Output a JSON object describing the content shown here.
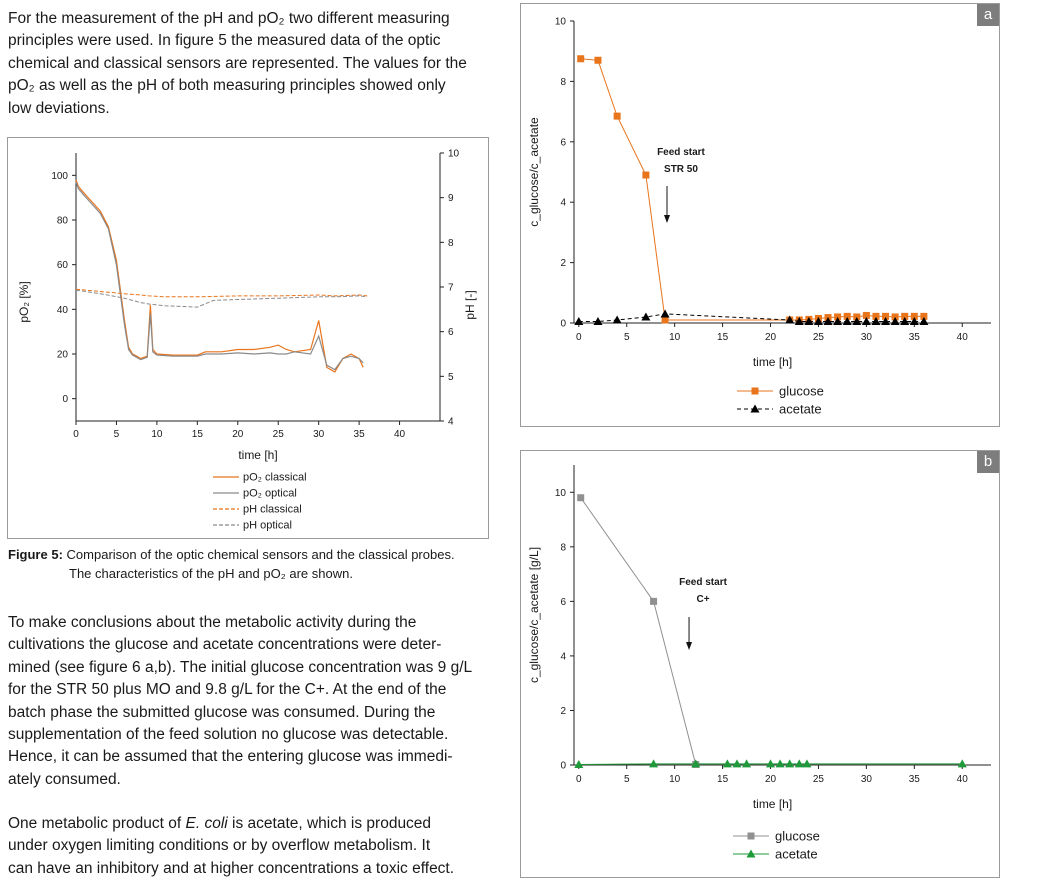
{
  "text": {
    "p1": [
      "For the measurement of the pH and pO₂ two different measuring",
      "principles were used. In figure 5 the measured data of the optic",
      "chemical and classical sensors are represented. The values for the",
      "pO₂ as well as the pH of both measuring principles showed only",
      "low deviations."
    ],
    "caption_label": "Figure 5:",
    "caption_line1": "Comparison of the optic chemical sensors and the classical probes.",
    "caption_line2": "The characteristics of the pH and pO₂ are shown.",
    "p2": [
      "To make conclusions about the metabolic activity during the",
      "cultivations the glucose and acetate concentrations were deter-",
      "mined (see figure 6 a,b). The initial glucose concentration was 9 g/L",
      "for the STR 50 plus MO and 9.8 g/L for the C+. At the end of the",
      "batch phase the submitted glucose was consumed. During the",
      "supplementation of the feed solution no glucose was detectable.",
      "Hence, it can be assumed that the entering glucose was immedi-",
      "ately consumed."
    ],
    "p3_line1_pre": "One metabolic product of ",
    "p3_line1_em": "E. coli",
    "p3_line1_post": " is acetate, which is produced",
    "p3": [
      "under oxygen limiting conditions or by overflow metabolism. It",
      "can have an inhibitory and at higher concentrations a toxic effect."
    ]
  },
  "chart_data": [
    {
      "id": "fig5",
      "type": "line",
      "xlabel": "time [h]",
      "ylabel_left": "pO₂ [%]",
      "ylabel_right": "pH [-]",
      "xlim": [
        0,
        45
      ],
      "xticks": [
        0,
        5,
        10,
        15,
        20,
        25,
        30,
        35,
        40
      ],
      "ylim_left": [
        -10,
        110
      ],
      "yticks_left": [
        0,
        20,
        40,
        60,
        80,
        100
      ],
      "ylim_right": [
        4,
        10
      ],
      "yticks_right": [
        4,
        5,
        6,
        7,
        8,
        9,
        10
      ],
      "legend_position": "bottom-center",
      "series": [
        {
          "name": "pO₂ classical",
          "axis": "left",
          "color": "#e8741c",
          "dash": false,
          "x": [
            0,
            0.3,
            1,
            2,
            3,
            4,
            5,
            6,
            6.5,
            7,
            7.5,
            8,
            8.8,
            9.2,
            9.5,
            10,
            12,
            15,
            16,
            18,
            20,
            22,
            24,
            25,
            26,
            27,
            29,
            30,
            31,
            32,
            33,
            34,
            35,
            35.5
          ],
          "y": [
            98,
            95,
            92,
            88,
            84,
            77,
            62,
            35,
            23,
            20,
            19,
            18,
            19,
            42,
            22,
            20,
            19.5,
            19.5,
            21,
            21,
            22,
            22,
            23,
            24,
            22,
            21,
            22,
            35,
            14,
            12,
            18,
            20,
            18,
            14
          ]
        },
        {
          "name": "pO₂ optical",
          "axis": "left",
          "color": "#8a8a8a",
          "dash": false,
          "x": [
            0,
            0.3,
            1,
            2,
            3,
            4,
            5,
            6,
            6.5,
            7,
            7.5,
            8,
            8.8,
            9.2,
            9.5,
            10,
            12,
            15,
            16,
            18,
            20,
            22,
            24,
            25,
            26,
            27,
            29,
            30,
            31,
            32,
            33,
            34,
            35,
            35.5
          ],
          "y": [
            97,
            94,
            91,
            87,
            83,
            76,
            60,
            33,
            22,
            19.5,
            18.5,
            17.5,
            18.5,
            38,
            21,
            19.5,
            19,
            19,
            20,
            20,
            20.5,
            20,
            20.5,
            20,
            20,
            21,
            20,
            28,
            15,
            13,
            18,
            19,
            18,
            16
          ]
        },
        {
          "name": "pH classical",
          "axis": "right",
          "color": "#e8741c",
          "dash": true,
          "x": [
            0,
            3,
            6,
            8,
            9,
            11,
            15,
            20,
            25,
            30,
            32,
            35,
            36
          ],
          "y": [
            6.95,
            6.9,
            6.85,
            6.82,
            6.8,
            6.78,
            6.78,
            6.8,
            6.8,
            6.82,
            6.8,
            6.82,
            6.8
          ]
        },
        {
          "name": "pH optical",
          "axis": "right",
          "color": "#8a8a8a",
          "dash": true,
          "x": [
            0,
            3,
            6,
            8,
            9,
            11,
            15,
            17,
            20,
            25,
            30,
            32,
            35,
            36
          ],
          "y": [
            6.93,
            6.85,
            6.75,
            6.65,
            6.62,
            6.58,
            6.55,
            6.7,
            6.72,
            6.75,
            6.78,
            6.78,
            6.8,
            6.78
          ]
        }
      ]
    },
    {
      "id": "fig6a",
      "type": "line",
      "panel_label": "a",
      "xlabel": "time [h]",
      "ylabel": "c_glucose/c_acetate",
      "xlim": [
        -0.5,
        43
      ],
      "xticks": [
        0,
        5,
        10,
        15,
        20,
        25,
        30,
        35,
        40
      ],
      "ylim": [
        0,
        10
      ],
      "yticks": [
        0,
        2,
        4,
        6,
        8,
        10
      ],
      "annotation": {
        "lines": [
          "Feed start",
          "STR 50"
        ],
        "x": 9.2
      },
      "legend_position": "bottom-center",
      "series": [
        {
          "name": "glucose",
          "color": "#e8741c",
          "marker": "square",
          "dash": false,
          "x": [
            0.2,
            2,
            4,
            7,
            9,
            22,
            23,
            24,
            25,
            26,
            27,
            28,
            29,
            30,
            31,
            32,
            33,
            34,
            35,
            36
          ],
          "y": [
            8.75,
            8.7,
            6.85,
            4.9,
            0.1,
            0.1,
            0.1,
            0.12,
            0.15,
            0.18,
            0.2,
            0.22,
            0.2,
            0.25,
            0.22,
            0.22,
            0.2,
            0.22,
            0.22,
            0.22
          ]
        },
        {
          "name": "acetate",
          "color": "#000000",
          "marker": "triangle",
          "dash": true,
          "x": [
            0,
            2,
            4,
            7,
            9,
            22,
            23,
            24,
            25,
            26,
            27,
            28,
            29,
            30,
            31,
            32,
            33,
            34,
            35,
            36
          ],
          "y": [
            0.05,
            0.05,
            0.1,
            0.2,
            0.3,
            0.1,
            0.05,
            0.05,
            0.05,
            0.05,
            0.05,
            0.05,
            0.05,
            0.05,
            0.05,
            0.05,
            0.05,
            0.05,
            0.05,
            0.05
          ]
        }
      ]
    },
    {
      "id": "fig6b",
      "type": "line",
      "panel_label": "b",
      "xlabel": "time [h]",
      "ylabel": "c_glucose/c_acetate [g/L]",
      "xlim": [
        -0.5,
        43
      ],
      "xticks": [
        0,
        5,
        10,
        15,
        20,
        25,
        30,
        35,
        40
      ],
      "ylim": [
        0,
        11
      ],
      "yticks": [
        0,
        2,
        4,
        6,
        8,
        10
      ],
      "annotation": {
        "lines": [
          "Feed start",
          "C+"
        ],
        "x": 11.5
      },
      "legend_position": "bottom-center",
      "series": [
        {
          "name": "glucose",
          "color": "#909090",
          "marker": "square",
          "dash": false,
          "x": [
            0.2,
            7.8,
            12.2
          ],
          "y": [
            9.8,
            6.0,
            0.02
          ]
        },
        {
          "name": "acetate",
          "color": "#1f9a3a",
          "marker": "triangle",
          "dash": false,
          "x": [
            0,
            7.8,
            12.2,
            15.5,
            16.5,
            17.5,
            20,
            21,
            22,
            23,
            23.8,
            40
          ],
          "y": [
            0.02,
            0.04,
            0.04,
            0.04,
            0.04,
            0.04,
            0.04,
            0.04,
            0.04,
            0.04,
            0.04,
            0.04
          ]
        }
      ]
    }
  ]
}
